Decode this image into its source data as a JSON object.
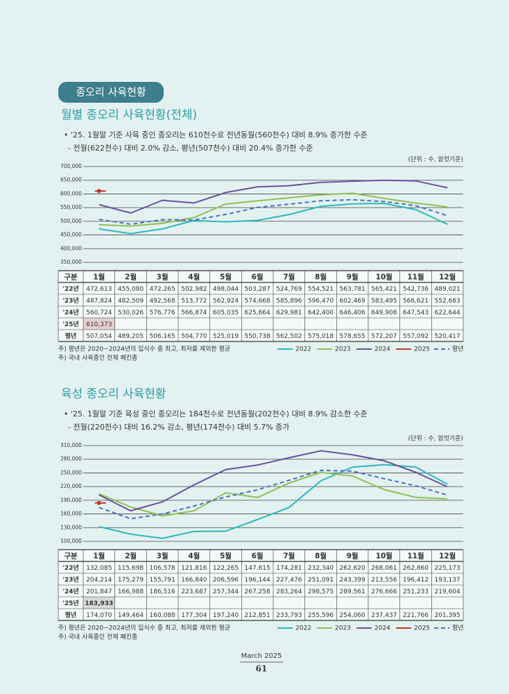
{
  "section_tab": "종오리 사육현황",
  "chart_data": [
    {
      "type": "line",
      "title": "월별 종오리 사육현황(전체)",
      "bullets": [
        "• '25. 1월말 기준 사육 중인 종오리는 610천수로  전년동월(560천수) 대비 8.9% 증가한 수준",
        "- 전월(622천수) 대비 2.0% 감소, 평년(507천수) 대비 20.4% 증가한 수준"
      ],
      "unit": "(단위 : 수, 암컷기준)",
      "notes": [
        "주) 평년은 2020~2024년의 입식수 중 최고, 최저를 제외한 평균",
        "주) 국내 사육중인 전체 폐킨종"
      ],
      "table_header": "구분",
      "categories": [
        "1월",
        "2월",
        "3월",
        "4월",
        "5월",
        "6월",
        "7월",
        "8월",
        "9월",
        "10월",
        "11월",
        "12월"
      ],
      "ylim": [
        350000,
        700000
      ],
      "yticks": [
        {
          "value": 350000,
          "label": "350,000"
        },
        {
          "value": 400000,
          "label": "400,000"
        },
        {
          "value": 450000,
          "label": "450,000"
        },
        {
          "value": 500000,
          "label": "500,000"
        },
        {
          "value": 550000,
          "label": "550,000"
        },
        {
          "value": 600000,
          "label": "600,000"
        },
        {
          "value": 650000,
          "label": "650,000"
        },
        {
          "value": 700000,
          "label": "700,000"
        }
      ],
      "grid": true,
      "series": [
        {
          "name": "2022",
          "table_label": "'22년",
          "color": "#2db6bf",
          "line_style": "solid",
          "values": [
            472613,
            455080,
            472265,
            502982,
            498044,
            503287,
            524769,
            554521,
            563781,
            565421,
            542736,
            489021
          ],
          "value_labels": [
            "472,613",
            "455,080",
            "472,265",
            "502,982",
            "498,044",
            "503,287",
            "524,769",
            "554,521",
            "563,781",
            "565,421",
            "542,736",
            "489,021"
          ]
        },
        {
          "name": "2023",
          "table_label": "'23년",
          "color": "#8dc153",
          "line_style": "solid",
          "values": [
            487824,
            482509,
            492568,
            513772,
            562924,
            574668,
            585896,
            596470,
            602469,
            583495,
            566621,
            552683
          ],
          "value_labels": [
            "487,824",
            "482,509",
            "492,568",
            "513,772",
            "562,924",
            "574,668",
            "585,896",
            "596,470",
            "602,469",
            "583,495",
            "566,621",
            "552,683"
          ]
        },
        {
          "name": "2024",
          "table_label": "'24년",
          "color": "#6c4f9f",
          "line_style": "solid",
          "values": [
            560724,
            530026,
            576776,
            566874,
            605035,
            625664,
            629981,
            642400,
            646406,
            649908,
            647543,
            622644
          ],
          "value_labels": [
            "560,724",
            "530,026",
            "576,776",
            "566,874",
            "605,035",
            "625,664",
            "629,981",
            "642,400",
            "646,406",
            "649,908",
            "647,543",
            "622,644"
          ]
        },
        {
          "name": "2025",
          "table_label": "'25년",
          "color": "#c0392b",
          "line_style": "solid",
          "highlight": "#e6cfcf",
          "values": [
            610373,
            null,
            null,
            null,
            null,
            null,
            null,
            null,
            null,
            null,
            null,
            null
          ],
          "value_labels": [
            "610,373",
            null,
            null,
            null,
            null,
            null,
            null,
            null,
            null,
            null,
            null,
            null
          ]
        },
        {
          "name": "평년",
          "table_label": "평년",
          "color": "#4a6fc4",
          "line_style": "dashed",
          "values": [
            507054,
            489205,
            506165,
            504770,
            525019,
            550738,
            562502,
            575018,
            578655,
            572207,
            557092,
            520417
          ],
          "value_labels": [
            "507,054",
            "489,205",
            "506,165",
            "504,770",
            "525,019",
            "550,738",
            "562,502",
            "575,018",
            "578,655",
            "572,207",
            "557,092",
            "520,417"
          ]
        }
      ]
    },
    {
      "type": "line",
      "title": "육성 종오리 사육현황",
      "bullets": [
        "• '25. 1월말 기준 육성 중인 종오리는 184천수로  전년동월(202천수) 대비 8.9% 감소한 수준",
        "- 전월(220천수) 대비 16.2% 감소, 평년(174천수) 대비 5.7% 증가"
      ],
      "unit": "(단위 : 수, 암컷기준)",
      "notes": [
        "주) 평년은 2020~2024년의 입식수 중 최고, 최저를 제외한 평균",
        "주) 국내 사육중인 전체 폐킨종"
      ],
      "table_header": "구분",
      "categories": [
        "1월",
        "2월",
        "3월",
        "4월",
        "5월",
        "6월",
        "7월",
        "8월",
        "9월",
        "10월",
        "11월",
        "12월"
      ],
      "ylim": [
        100000,
        310000
      ],
      "yticks": [
        {
          "value": 100000,
          "label": "100,000"
        },
        {
          "value": 130000,
          "label": "130,000"
        },
        {
          "value": 160000,
          "label": "160,000"
        },
        {
          "value": 190000,
          "label": "190,000"
        },
        {
          "value": 220000,
          "label": "220,000"
        },
        {
          "value": 250000,
          "label": "250,000"
        },
        {
          "value": 280000,
          "label": "280,000"
        },
        {
          "value": 310000,
          "label": "310,000"
        }
      ],
      "grid": true,
      "series": [
        {
          "name": "2022",
          "table_label": "'22년",
          "color": "#2db6bf",
          "line_style": "solid",
          "values": [
            132085,
            115698,
            106578,
            121816,
            122265,
            147615,
            174281,
            232340,
            262620,
            268061,
            262860,
            225173
          ],
          "value_labels": [
            "132,085",
            "115,698",
            "106,578",
            "121,816",
            "122,265",
            "147,615",
            "174,281",
            "232,340",
            "262,620",
            "268,061",
            "262,860",
            "225,173"
          ]
        },
        {
          "name": "2023",
          "table_label": "'23년",
          "color": "#8dc153",
          "line_style": "solid",
          "values": [
            204214,
            175279,
            155791,
            166840,
            206596,
            196144,
            227476,
            251091,
            243399,
            213556,
            196412,
            193137
          ],
          "value_labels": [
            "204,214",
            "175,279",
            "155,791",
            "166,840",
            "206,596",
            "196,144",
            "227,476",
            "251,091",
            "243,399",
            "213,556",
            "196,412",
            "193,137"
          ]
        },
        {
          "name": "2024",
          "table_label": "'24년",
          "color": "#6c4f9f",
          "line_style": "solid",
          "values": [
            201847,
            166988,
            186516,
            223687,
            257344,
            267258,
            283264,
            298575,
            289561,
            276666,
            251233,
            219604
          ],
          "value_labels": [
            "201,847",
            "166,988",
            "186,516",
            "223,687",
            "257,344",
            "267,258",
            "283,264",
            "298,575",
            "289,561",
            "276,666",
            "251,233",
            "219,604"
          ]
        },
        {
          "name": "2025",
          "table_label": "'25년",
          "color": "#c0392b",
          "line_style": "solid",
          "highlight": "#d9d9d9",
          "values": [
            183933,
            null,
            null,
            null,
            null,
            null,
            null,
            null,
            null,
            null,
            null,
            null
          ],
          "value_labels": [
            "183,933",
            null,
            null,
            null,
            null,
            null,
            null,
            null,
            null,
            null,
            null,
            null
          ]
        },
        {
          "name": "평년",
          "table_label": "평년",
          "color": "#4a6fc4",
          "line_style": "dashed",
          "values": [
            174070,
            149464,
            160088,
            177304,
            197240,
            212851,
            233793,
            255596,
            254060,
            237437,
            221766,
            201395
          ],
          "value_labels": [
            "174,070",
            "149,464",
            "160,088",
            "177,304",
            "197,240",
            "212,851",
            "233,793",
            "255,596",
            "254,060",
            "237,437",
            "221,766",
            "201,395"
          ]
        }
      ]
    }
  ],
  "footer": {
    "issue": "March 2025",
    "page": "61"
  }
}
